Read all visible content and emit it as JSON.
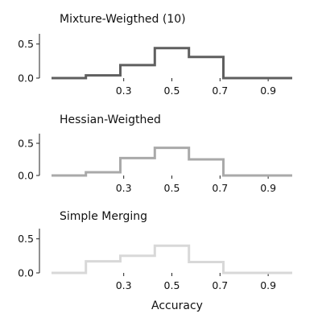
{
  "chart_data": [
    {
      "type": "histogram-step",
      "title": "Mixture-Weigthed (10)",
      "color": "#5f5f5f",
      "bin_edges": [
        0.0,
        0.143,
        0.286,
        0.429,
        0.571,
        0.714,
        0.857,
        1.0
      ],
      "values": [
        0.0,
        0.04,
        0.19,
        0.44,
        0.31,
        0.0,
        0.0
      ],
      "xlim": [
        -0.05,
        1.05
      ],
      "ylim": [
        0,
        0.65
      ],
      "yticks": [
        0.0,
        0.5
      ],
      "ytick_labels": [
        "0.0",
        "0.5"
      ],
      "xticks": [
        0.3,
        0.5,
        0.7,
        0.9
      ],
      "xtick_labels": [
        "0.3",
        "0.5",
        "0.7",
        "0.9"
      ]
    },
    {
      "type": "histogram-step",
      "title": "Hessian-Weigthed",
      "color": "#a9a9a9",
      "bin_edges": [
        0.0,
        0.143,
        0.286,
        0.429,
        0.571,
        0.714,
        0.857,
        1.0
      ],
      "values": [
        0.0,
        0.05,
        0.27,
        0.43,
        0.25,
        0.0,
        0.0
      ],
      "xlim": [
        -0.05,
        1.05
      ],
      "ylim": [
        0,
        0.65
      ],
      "yticks": [
        0.0,
        0.5
      ],
      "ytick_labels": [
        "0.0",
        "0.5"
      ],
      "xticks": [
        0.3,
        0.5,
        0.7,
        0.9
      ],
      "xtick_labels": [
        "0.3",
        "0.5",
        "0.7",
        "0.9"
      ]
    },
    {
      "type": "histogram-step",
      "title": "Simple Merging",
      "color": "#d8d8d8",
      "bin_edges": [
        0.0,
        0.143,
        0.286,
        0.429,
        0.571,
        0.714,
        0.857,
        1.0
      ],
      "values": [
        0.0,
        0.17,
        0.25,
        0.4,
        0.16,
        0.0,
        0.0
      ],
      "xlim": [
        -0.05,
        1.05
      ],
      "ylim": [
        0,
        0.65
      ],
      "yticks": [
        0.0,
        0.5
      ],
      "ytick_labels": [
        "0.0",
        "0.5"
      ],
      "xticks": [
        0.3,
        0.5,
        0.7,
        0.9
      ],
      "xtick_labels": [
        "0.3",
        "0.5",
        "0.7",
        "0.9"
      ]
    }
  ],
  "xlabel": "Accuracy"
}
